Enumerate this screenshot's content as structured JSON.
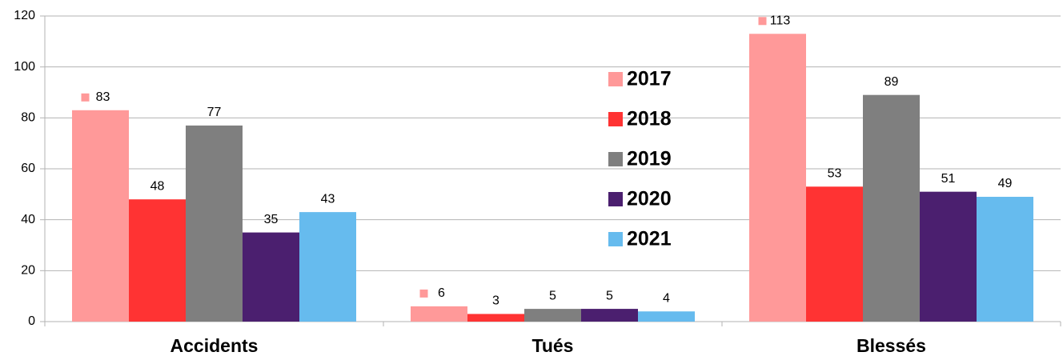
{
  "chart_data": {
    "type": "bar",
    "categories": [
      "Accidents",
      "Tués",
      "Blessés"
    ],
    "series": [
      {
        "name": "2017",
        "color": "#ff9999",
        "values": [
          83,
          6,
          113
        ]
      },
      {
        "name": "2018",
        "color": "#ff3333",
        "values": [
          48,
          3,
          53
        ]
      },
      {
        "name": "2019",
        "color": "#7f7f7f",
        "values": [
          77,
          5,
          89
        ]
      },
      {
        "name": "2020",
        "color": "#4b1f6f",
        "values": [
          35,
          5,
          51
        ]
      },
      {
        "name": "2021",
        "color": "#66bbee",
        "values": [
          43,
          4,
          49
        ]
      }
    ],
    "ylim": [
      0,
      120
    ],
    "yticks": [
      0,
      20,
      40,
      60,
      80,
      100,
      120
    ],
    "grid": true
  }
}
